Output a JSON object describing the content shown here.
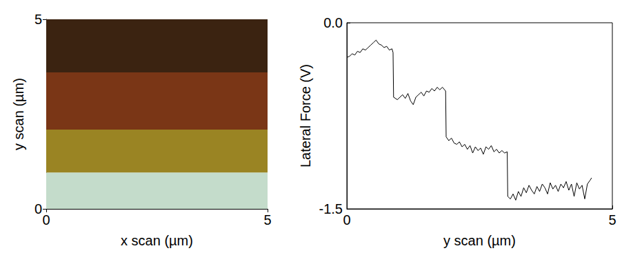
{
  "chart_data": [
    {
      "type": "image",
      "x_label": "x scan (µm)",
      "y_label": "y scan (µm)",
      "xlim": [
        0,
        5
      ],
      "ylim": [
        0,
        5
      ],
      "xticks": [
        0,
        5
      ],
      "yticks": [
        0,
        5
      ],
      "bands": [
        {
          "ymin": 0,
          "ymax": 0.96,
          "color": "#c4dccb"
        },
        {
          "ymin": 0.96,
          "ymax": 2.09,
          "color": "#9a8423"
        },
        {
          "ymin": 2.09,
          "ymax": 3.6,
          "color": "#7a3616"
        },
        {
          "ymin": 3.6,
          "ymax": 5,
          "color": "#3b2311"
        }
      ]
    },
    {
      "type": "line",
      "x_label": "y scan (µm)",
      "y_label": "Lateral Force (V)",
      "xlim": [
        0,
        5
      ],
      "ylim": [
        -1.5,
        0
      ],
      "xticks": [
        0,
        5
      ],
      "yticks": [
        -1.5,
        {
          "value": 0,
          "label": "0.0"
        }
      ],
      "color": "#000000",
      "x": [
        0,
        0.05,
        0.1,
        0.15,
        0.2,
        0.25,
        0.3,
        0.35,
        0.4,
        0.45,
        0.5,
        0.55,
        0.6,
        0.65,
        0.7,
        0.75,
        0.8,
        0.85,
        0.87,
        0.88,
        0.95,
        1.0,
        1.05,
        1.1,
        1.15,
        1.2,
        1.25,
        1.3,
        1.35,
        1.4,
        1.45,
        1.5,
        1.55,
        1.6,
        1.65,
        1.7,
        1.75,
        1.8,
        1.86,
        1.87,
        1.92,
        1.97,
        2.02,
        2.07,
        2.12,
        2.17,
        2.22,
        2.27,
        2.32,
        2.37,
        2.42,
        2.47,
        2.52,
        2.57,
        2.62,
        2.67,
        2.72,
        2.77,
        2.82,
        2.87,
        2.92,
        2.97,
        3.02,
        3.03,
        3.08,
        3.13,
        3.18,
        3.23,
        3.28,
        3.33,
        3.38,
        3.43,
        3.48,
        3.53,
        3.58,
        3.63,
        3.68,
        3.73,
        3.78,
        3.83,
        3.88,
        3.93,
        3.98,
        4.03,
        4.08,
        4.13,
        4.18,
        4.23,
        4.28,
        4.33,
        4.38,
        4.43,
        4.48,
        4.53,
        4.58,
        4.61
      ],
      "values": [
        -0.28,
        -0.27,
        -0.25,
        -0.26,
        -0.23,
        -0.24,
        -0.21,
        -0.22,
        -0.2,
        -0.18,
        -0.16,
        -0.14,
        -0.17,
        -0.18,
        -0.2,
        -0.19,
        -0.22,
        -0.21,
        -0.24,
        -0.6,
        -0.62,
        -0.6,
        -0.58,
        -0.61,
        -0.57,
        -0.63,
        -0.66,
        -0.6,
        -0.58,
        -0.56,
        -0.59,
        -0.55,
        -0.56,
        -0.53,
        -0.55,
        -0.52,
        -0.54,
        -0.52,
        -0.55,
        -0.92,
        -0.95,
        -0.93,
        -0.97,
        -0.98,
        -0.96,
        -1.0,
        -0.98,
        -1.02,
        -0.99,
        -1.05,
        -1.0,
        -1.03,
        -1.01,
        -1.06,
        -1.0,
        -1.02,
        -0.99,
        -1.04,
        -1.02,
        -1.05,
        -1.03,
        -1.05,
        -1.04,
        -1.4,
        -1.42,
        -1.38,
        -1.43,
        -1.36,
        -1.4,
        -1.33,
        -1.37,
        -1.31,
        -1.35,
        -1.38,
        -1.32,
        -1.36,
        -1.3,
        -1.33,
        -1.38,
        -1.29,
        -1.34,
        -1.31,
        -1.36,
        -1.3,
        -1.33,
        -1.28,
        -1.35,
        -1.3,
        -1.4,
        -1.29,
        -1.34,
        -1.31,
        -1.42,
        -1.3,
        -1.27,
        -1.25
      ]
    }
  ]
}
